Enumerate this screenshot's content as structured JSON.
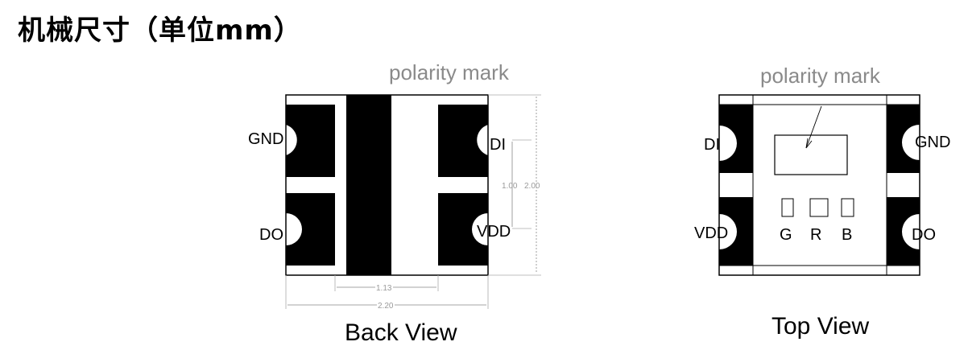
{
  "title": "机械尺寸（单位mm）",
  "back_view": {
    "caption": "Back View",
    "polarity_label": "polarity mark",
    "pins": {
      "top_left": "GND",
      "bottom_left": "DO",
      "top_right": "DI",
      "bottom_right": "VDD"
    },
    "dims": {
      "height_small": "1.00",
      "height_full": "2.00",
      "width_inner": "1.13",
      "width_full": "2.20"
    }
  },
  "top_view": {
    "caption": "Top View",
    "polarity_label": "polarity mark",
    "pins": {
      "top_left": "DI",
      "bottom_left": "VDD",
      "top_right": "GND",
      "bottom_right": "DO"
    },
    "leds": [
      "G",
      "R",
      "B"
    ]
  }
}
